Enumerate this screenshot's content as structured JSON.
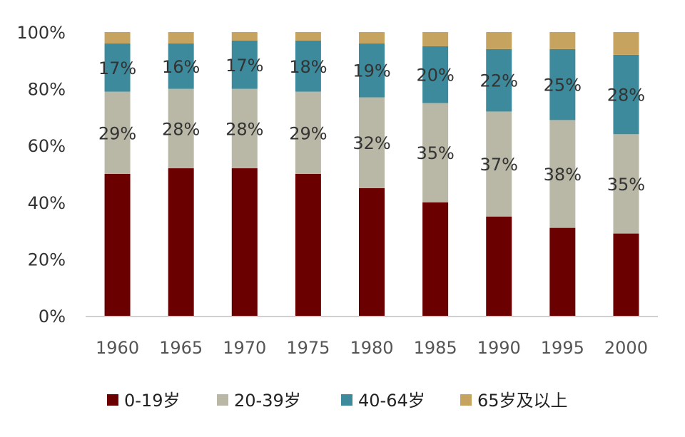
{
  "chart_data": {
    "type": "bar",
    "stacked": true,
    "categories": [
      "1960",
      "1965",
      "1970",
      "1975",
      "1980",
      "1985",
      "1990",
      "1995",
      "2000"
    ],
    "series": [
      {
        "name": "0-19岁",
        "color": "#6b0000",
        "values": [
          50,
          52,
          52,
          50,
          45,
          40,
          35,
          31,
          29
        ],
        "show_labels": false
      },
      {
        "name": "20-39岁",
        "color": "#b9b8a7",
        "values": [
          29,
          28,
          28,
          29,
          32,
          35,
          37,
          38,
          35
        ],
        "labels": [
          "29%",
          "28%",
          "28%",
          "29%",
          "32%",
          "35%",
          "37%",
          "38%",
          "35%"
        ],
        "show_labels": true
      },
      {
        "name": "40-64岁",
        "color": "#3c8a9b",
        "values": [
          17,
          16,
          17,
          18,
          19,
          20,
          22,
          25,
          28
        ],
        "labels": [
          "17%",
          "16%",
          "17%",
          "18%",
          "19%",
          "20%",
          "22%",
          "25%",
          "28%"
        ],
        "show_labels": true
      },
      {
        "name": "65岁及以上",
        "color": "#c6a45f",
        "values": [
          4,
          4,
          3,
          3,
          4,
          5,
          6,
          6,
          8
        ],
        "show_labels": false
      }
    ],
    "yticks": [
      "0%",
      "20%",
      "40%",
      "60%",
      "80%",
      "100%"
    ],
    "ylim": [
      0,
      100
    ],
    "legend": "bottom",
    "grid": false
  }
}
